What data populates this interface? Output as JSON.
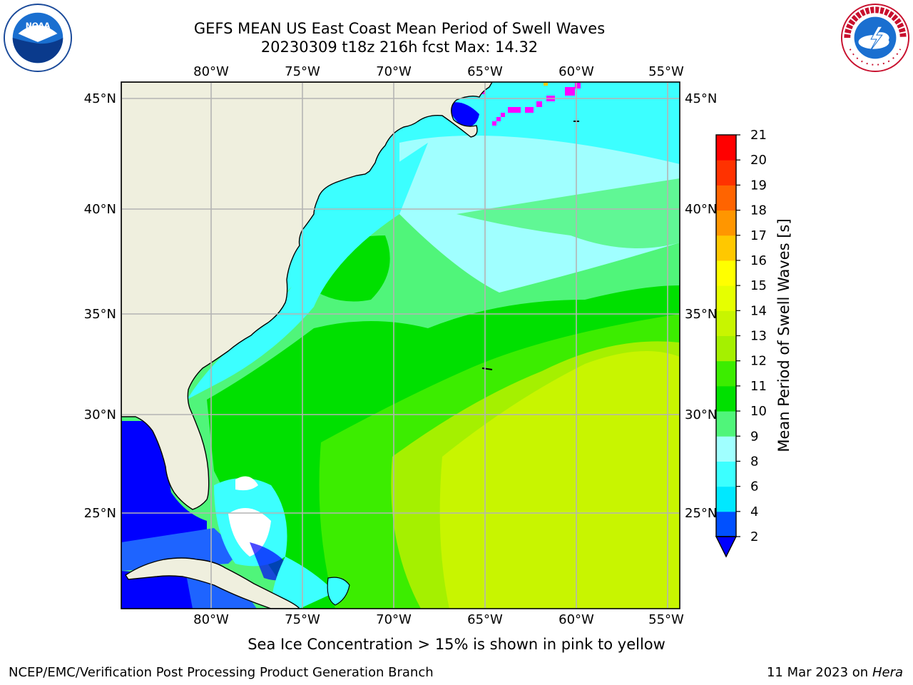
{
  "title": {
    "line1": "GEFS MEAN US East Coast Mean Period of Swell Waves",
    "line2": "20230309 t18z 216h fcst   Max: 14.32"
  },
  "map": {
    "lon_ticks": [
      "80°W",
      "75°W",
      "70°W",
      "65°W",
      "60°W",
      "55°W"
    ],
    "lat_ticks": [
      "45°N",
      "40°N",
      "35°N",
      "30°N",
      "25°N"
    ]
  },
  "colorbar": {
    "label": "Mean Period of Swell Waves [s]",
    "ticks": [
      "2",
      "4",
      "6",
      "8",
      "9",
      "10",
      "11",
      "12",
      "13",
      "14",
      "15",
      "16",
      "17",
      "18",
      "19",
      "20",
      "21"
    ],
    "colors": [
      "#0050ff",
      "#00e8ff",
      "#3cffff",
      "#a0ffff",
      "#50f57a",
      "#00e000",
      "#3ced00",
      "#a5f000",
      "#c8f500",
      "#e6ff00",
      "#ffff00",
      "#ffc800",
      "#ff9600",
      "#ff6400",
      "#ff3200",
      "#ff0000"
    ],
    "extend_color": "#0000ff"
  },
  "colors": {
    "land": "#efefde",
    "grid": "#b4b4b4",
    "deep_blue": "#0000ff",
    "sea_ice": "#ff00ff"
  },
  "footnote": "Sea Ice Concentration > 15% is shown in pink to yellow",
  "credit": {
    "left": "NCEP/EMC/Verification Post Processing Product Generation Branch",
    "date": "11 Mar 2023 on",
    "machine": "Hera"
  }
}
